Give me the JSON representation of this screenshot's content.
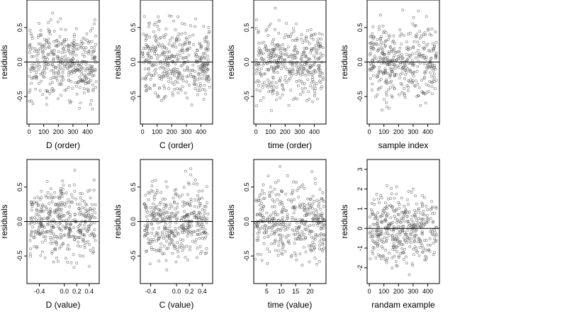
{
  "chart_data": [
    {
      "type": "scatter",
      "xlabel": "D (order)",
      "ylabel": "residuals",
      "xlim": [
        -15,
        480
      ],
      "ylim": [
        -0.9,
        0.9
      ],
      "xticks": [
        0,
        100,
        200,
        300,
        400
      ],
      "xticklabels": [
        "0",
        "100",
        "200",
        "300",
        "400"
      ],
      "yticks": [
        -0.5,
        0.0,
        0.5
      ],
      "yticklabels": [
        "-0.5",
        "0.0",
        "0.5"
      ],
      "x_range": [
        0,
        460
      ],
      "y_range": [
        -0.85,
        0.88
      ],
      "zero_line": true,
      "grid": false
    },
    {
      "type": "scatter",
      "xlabel": "C (order)",
      "ylabel": "residuals",
      "xlim": [
        -15,
        480
      ],
      "ylim": [
        -0.9,
        0.9
      ],
      "xticks": [
        0,
        100,
        200,
        300,
        400
      ],
      "xticklabels": [
        "0",
        "100",
        "200",
        "300",
        "400"
      ],
      "yticks": [
        -0.5,
        0.0,
        0.5
      ],
      "yticklabels": [
        "-0.5",
        "0.0",
        "0.5"
      ],
      "x_range": [
        0,
        460
      ],
      "y_range": [
        -0.85,
        0.88
      ],
      "zero_line": true,
      "grid": false
    },
    {
      "type": "scatter",
      "xlabel": "time (order)",
      "ylabel": "residuals",
      "xlim": [
        -15,
        480
      ],
      "ylim": [
        -0.9,
        0.9
      ],
      "xticks": [
        0,
        100,
        200,
        300,
        400
      ],
      "xticklabels": [
        "0",
        "100",
        "200",
        "300",
        "400"
      ],
      "yticks": [
        -0.5,
        0.0,
        0.5
      ],
      "yticklabels": [
        "-0.5",
        "0.0",
        "0.5"
      ],
      "x_range": [
        0,
        460
      ],
      "y_range": [
        -0.85,
        0.88
      ],
      "zero_line": true,
      "grid": false
    },
    {
      "type": "scatter",
      "xlabel": "sample index",
      "ylabel": "residuals",
      "xlim": [
        -15,
        480
      ],
      "ylim": [
        -0.9,
        0.9
      ],
      "xticks": [
        0,
        100,
        200,
        300,
        400
      ],
      "xticklabels": [
        "0",
        "100",
        "200",
        "300",
        "400"
      ],
      "yticks": [
        -0.5,
        0.0,
        0.5
      ],
      "yticklabels": [
        "-0.5",
        "0.0",
        "0.5"
      ],
      "x_range": [
        0,
        460
      ],
      "y_range": [
        -0.85,
        0.88
      ],
      "zero_line": true,
      "grid": false
    },
    {
      "type": "scatter",
      "xlabel": "D (value)",
      "ylabel": "residuals",
      "xlim": [
        -0.6,
        0.56
      ],
      "ylim": [
        -0.9,
        0.9
      ],
      "xticks": [
        -0.4,
        0.0,
        0.2,
        0.4
      ],
      "xticklabels": [
        "-0.4",
        "0.0",
        "0.2",
        "0.4"
      ],
      "yticks": [
        -0.5,
        0.0,
        0.5
      ],
      "yticklabels": [
        "-0.5",
        "0.0",
        "0.5"
      ],
      "x_range": [
        -0.55,
        0.5
      ],
      "y_range": [
        -0.85,
        0.85
      ],
      "zero_line": true,
      "grid": false
    },
    {
      "type": "scatter",
      "xlabel": "C (value)",
      "ylabel": "residuals",
      "xlim": [
        -0.56,
        0.56
      ],
      "ylim": [
        -0.9,
        0.9
      ],
      "xticks": [
        -0.4,
        0.0,
        0.2,
        0.4
      ],
      "xticklabels": [
        "-0.4",
        "0.0",
        "0.2",
        "0.4"
      ],
      "yticks": [
        -0.5,
        0.0,
        0.5
      ],
      "yticklabels": [
        "-0.5",
        "0.0",
        "0.5"
      ],
      "x_range": [
        -0.5,
        0.5
      ],
      "y_range": [
        -0.85,
        0.88
      ],
      "zero_line": true,
      "grid": false
    },
    {
      "type": "scatter",
      "xlabel": "time (value)",
      "ylabel": "residuals",
      "xlim": [
        0.5,
        25.5
      ],
      "ylim": [
        -0.9,
        0.9
      ],
      "xticks": [
        5,
        10,
        15,
        20
      ],
      "xticklabels": [
        "5",
        "10",
        "15",
        "20"
      ],
      "yticks": [
        -0.5,
        0.0,
        0.5
      ],
      "yticklabels": [
        "-0.5",
        "0.0",
        "0.5"
      ],
      "x_range": [
        1,
        25
      ],
      "y_range": [
        -0.85,
        0.88
      ],
      "zero_line": true,
      "grid": false
    },
    {
      "type": "scatter",
      "xlabel": "randam example",
      "ylabel": "residuals",
      "xlim": [
        -15,
        480
      ],
      "ylim": [
        -2.8,
        3.5
      ],
      "xticks": [
        0,
        100,
        200,
        300,
        400
      ],
      "xticklabels": [
        "0",
        "100",
        "200",
        "300",
        "400"
      ],
      "yticks": [
        -2,
        -1,
        0,
        1,
        2,
        3
      ],
      "yticklabels": [
        "-2",
        "-1",
        "0",
        "1",
        "2",
        "3"
      ],
      "x_range": [
        0,
        460
      ],
      "y_range": [
        -2.5,
        3.2
      ],
      "zero_line": true,
      "grid": false
    }
  ]
}
